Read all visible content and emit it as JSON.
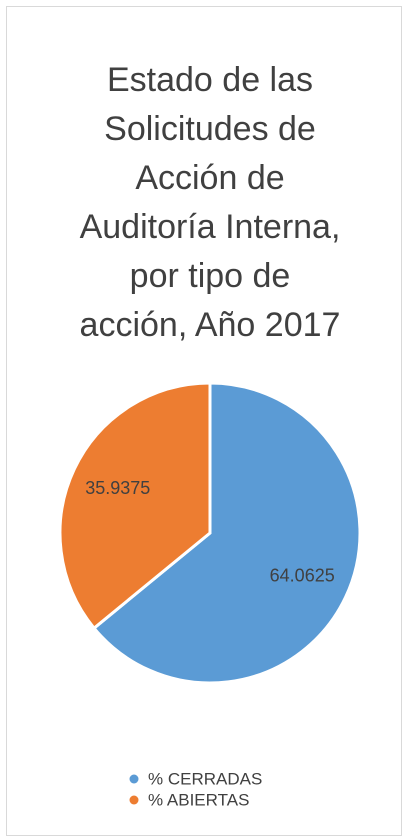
{
  "chart_data": {
    "type": "pie",
    "title": "Estado de las\nSolicitudes de\nAcción de\nAuditoría Interna,\npor tipo de\nacción, Año 2017",
    "categories": [
      "% CERRADAS",
      "% ABIERTAS"
    ],
    "values": [
      64.0625,
      35.9375
    ],
    "colors": [
      "#5b9bd5",
      "#ed7d31"
    ]
  }
}
